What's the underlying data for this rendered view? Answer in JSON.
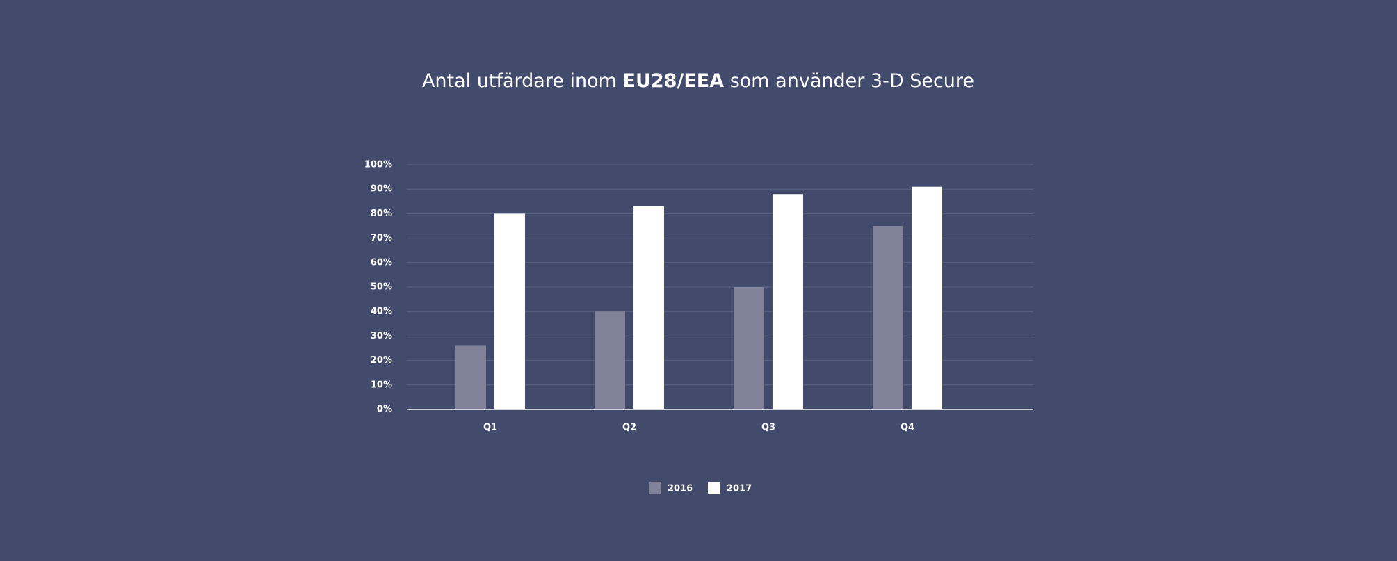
{
  "chart_data": {
    "type": "bar",
    "title": [
      "Antal utfärdare inom ",
      "EU28/EEA",
      " som använder 3-D Secure"
    ],
    "categories": [
      "Q1",
      "Q2",
      "Q3",
      "Q4"
    ],
    "series": [
      {
        "name": "2016",
        "color": "#7f8299",
        "values": [
          26,
          40,
          50,
          75
        ]
      },
      {
        "name": "2017",
        "color": "#ffffff",
        "values": [
          80,
          83,
          88,
          91
        ]
      }
    ],
    "ylim": [
      0,
      100
    ],
    "yticks": [
      {
        "value": 0,
        "label": "0%"
      },
      {
        "value": 10,
        "label": "10%"
      },
      {
        "value": 20,
        "label": "20%"
      },
      {
        "value": 30,
        "label": "30%"
      },
      {
        "value": 40,
        "label": "40%"
      },
      {
        "value": 50,
        "label": "50%"
      },
      {
        "value": 60,
        "label": "60%"
      },
      {
        "value": 70,
        "label": "70%"
      },
      {
        "value": 80,
        "label": "80%"
      },
      {
        "value": 90,
        "label": "90%"
      },
      {
        "value": 100,
        "label": "100%"
      }
    ],
    "grid": true,
    "legend": "bottom"
  }
}
